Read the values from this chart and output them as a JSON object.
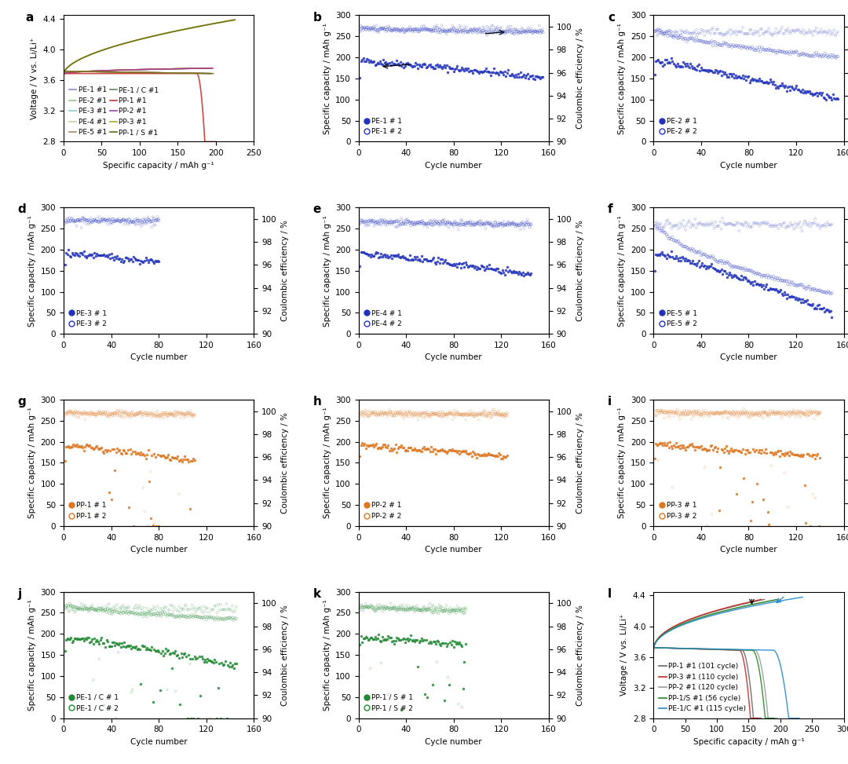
{
  "panel_a": {
    "label": "a",
    "ylim": [
      2.8,
      4.45
    ],
    "xlim": [
      0,
      250
    ],
    "yticks": [
      2.8,
      3.2,
      3.6,
      4.0,
      4.4
    ],
    "xlabel": "Specific capacity / mAh g⁻¹",
    "ylabel": "Voltage / V vs. Li/Li⁺",
    "legend_entries": [
      {
        "label": "PE-1 #1",
        "color": "#8888cc"
      },
      {
        "label": "PE-2 #1",
        "color": "#99cc88"
      },
      {
        "label": "PE-3 #1",
        "color": "#88cccc"
      },
      {
        "label": "PE-4 #1",
        "color": "#ccccaa"
      },
      {
        "label": "PE-5 #1",
        "color": "#aa8866"
      },
      {
        "label": "PE-1 / C #1",
        "color": "#5d8a5d"
      },
      {
        "label": "PP-1 #1",
        "color": "#cc3333"
      },
      {
        "label": "PP-2 #1",
        "color": "#9944aa"
      },
      {
        "label": "PP-3 #1",
        "color": "#aaaa22"
      },
      {
        "label": "PP-1 / S #1",
        "color": "#6a6a11"
      }
    ]
  },
  "panel_l": {
    "label": "l",
    "ylim": [
      2.8,
      4.45
    ],
    "xlim": [
      0,
      300
    ],
    "yticks": [
      2.8,
      3.2,
      3.6,
      4.0,
      4.4
    ],
    "xlabel": "Specific capacity / mAh g⁻¹",
    "ylabel": "Voltage / V vs. Li/Li⁺",
    "legend_entries": [
      {
        "label": "PP-1 #1 (101 cycle)",
        "color": "#666666"
      },
      {
        "label": "PP-3 #1 (110 cycle)",
        "color": "#cc2222"
      },
      {
        "label": "PP-2 #1 (120 cycle)",
        "color": "#999999"
      },
      {
        "label": "PP-1/S #1 (56 cycle)",
        "color": "#228822"
      },
      {
        "label": "PE-1/C #1 (115 cycle)",
        "color": "#2288cc"
      }
    ]
  },
  "bg_color": "#ffffff",
  "label_fontsize": 11,
  "tick_fontsize": 7.5,
  "axis_label_fontsize": 7.5,
  "legend_fontsize": 6.5
}
